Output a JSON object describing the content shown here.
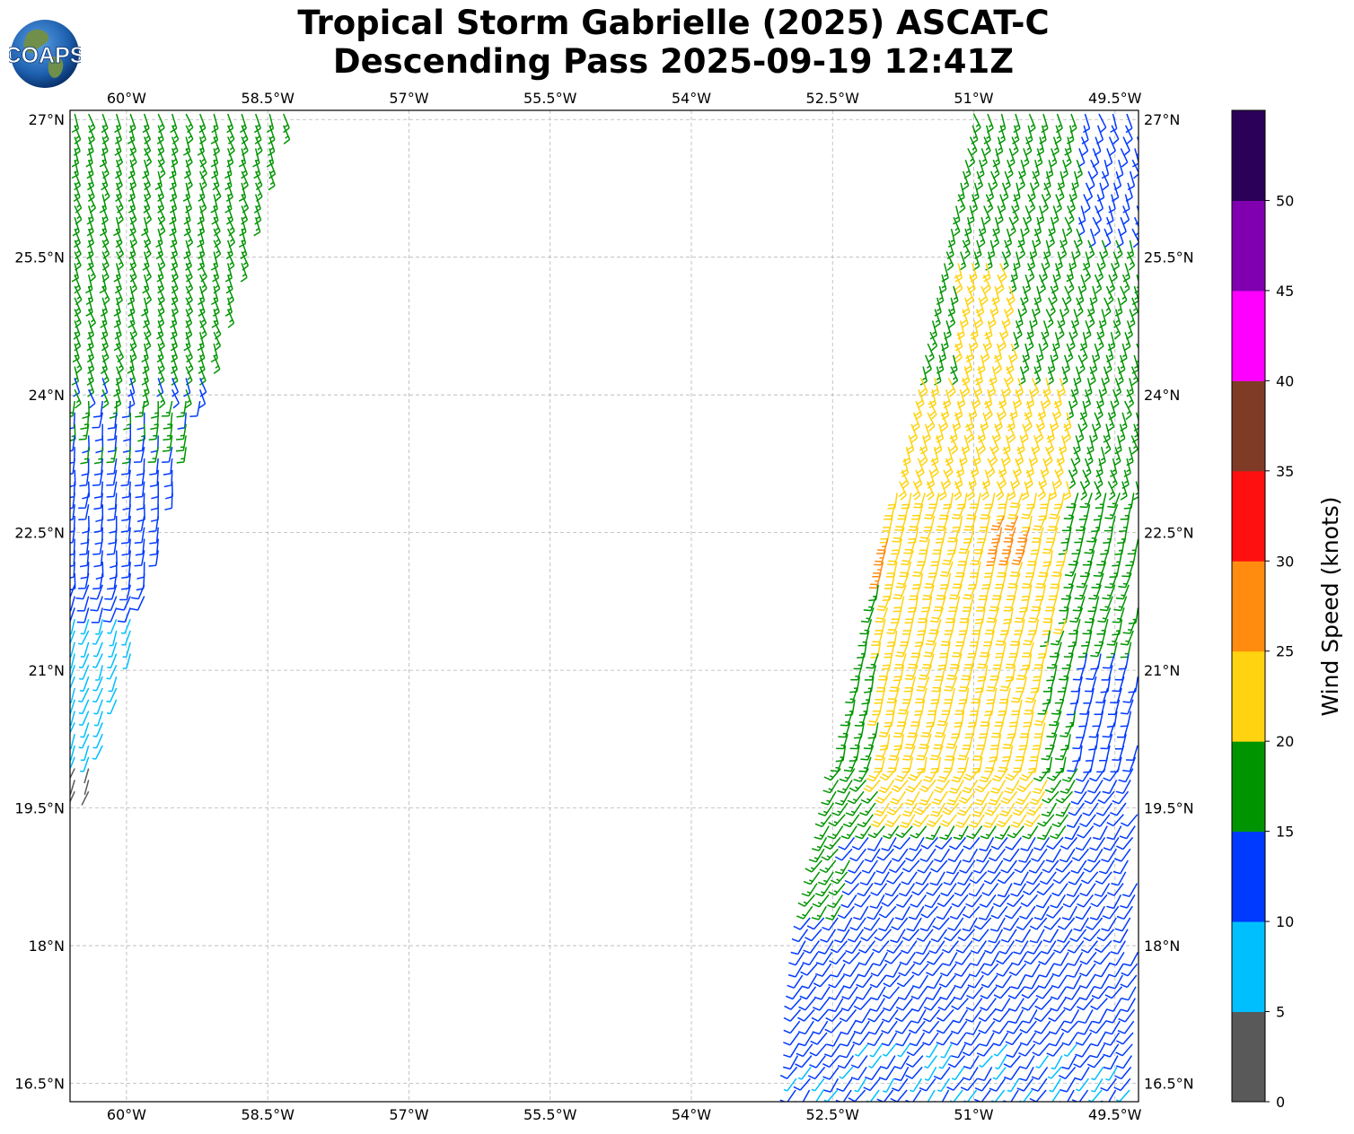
{
  "title": {
    "line1": "Tropical Storm Gabrielle (2025) ASCAT-C",
    "line2": "Descending Pass 2025-09-19 12:41Z"
  },
  "logo": {
    "text": "COAPS",
    "icon": "globe-icon"
  },
  "map": {
    "lon_range": [
      -60.6,
      -49.25
    ],
    "lat_range": [
      16.3,
      27.1
    ],
    "gridlines": true,
    "lon_ticks": [
      {
        "value": -60,
        "label": "60°W"
      },
      {
        "value": -58.5,
        "label": "58.5°W"
      },
      {
        "value": -57,
        "label": "57°W"
      },
      {
        "value": -55.5,
        "label": "55.5°W"
      },
      {
        "value": -54,
        "label": "54°W"
      },
      {
        "value": -52.5,
        "label": "52.5°W"
      },
      {
        "value": -51,
        "label": "51°W"
      },
      {
        "value": -49.5,
        "label": "49.5°W"
      }
    ],
    "lat_ticks": [
      {
        "value": 27,
        "label": "27°N"
      },
      {
        "value": 25.5,
        "label": "25.5°N"
      },
      {
        "value": 24,
        "label": "24°N"
      },
      {
        "value": 22.5,
        "label": "22.5°N"
      },
      {
        "value": 21,
        "label": "21°N"
      },
      {
        "value": 19.5,
        "label": "19.5°N"
      },
      {
        "value": 18,
        "label": "18°N"
      },
      {
        "value": 16.5,
        "label": "16.5°N"
      }
    ]
  },
  "colorbar": {
    "label": "Wind Speed (knots)",
    "range": [
      0,
      55
    ],
    "bins": [
      {
        "min": 0,
        "max": 5,
        "color": "#595959"
      },
      {
        "min": 5,
        "max": 10,
        "color": "#00bfff"
      },
      {
        "min": 10,
        "max": 15,
        "color": "#0039ff"
      },
      {
        "min": 15,
        "max": 20,
        "color": "#009500"
      },
      {
        "min": 20,
        "max": 25,
        "color": "#ffd30f"
      },
      {
        "min": 25,
        "max": 30,
        "color": "#ff8c0f"
      },
      {
        "min": 30,
        "max": 35,
        "color": "#ff1010"
      },
      {
        "min": 35,
        "max": 40,
        "color": "#803b27"
      },
      {
        "min": 40,
        "max": 45,
        "color": "#ff00ff"
      },
      {
        "min": 45,
        "max": 50,
        "color": "#8000b0"
      },
      {
        "min": 50,
        "max": 55,
        "color": "#2b0059"
      }
    ],
    "ticks": [
      {
        "value": 0,
        "label": "0"
      },
      {
        "value": 5,
        "label": "5"
      },
      {
        "value": 10,
        "label": "10"
      },
      {
        "value": 15,
        "label": "15"
      },
      {
        "value": 20,
        "label": "20"
      },
      {
        "value": 25,
        "label": "25"
      },
      {
        "value": 30,
        "label": "30"
      },
      {
        "value": 35,
        "label": "35"
      },
      {
        "value": 40,
        "label": "40"
      },
      {
        "value": 45,
        "label": "45"
      },
      {
        "value": 50,
        "label": "50"
      }
    ]
  },
  "wind_swaths": [
    {
      "name": "west",
      "lon_edges_at_lat": [
        [
          27.0,
          -60.55,
          -58.3
        ],
        [
          24.0,
          -60.55,
          -59.2
        ],
        [
          21.0,
          -60.55,
          -60.0
        ],
        [
          19.6,
          -60.55,
          -60.4
        ]
      ]
    },
    {
      "name": "east",
      "lon_edges_at_lat": [
        [
          27.0,
          -51.0,
          -49.25
        ],
        [
          24.0,
          -51.6,
          -49.25
        ],
        [
          21.0,
          -52.2,
          -49.25
        ],
        [
          18.0,
          -52.8,
          -49.25
        ],
        [
          16.3,
          -52.9,
          -49.25
        ]
      ]
    }
  ]
}
